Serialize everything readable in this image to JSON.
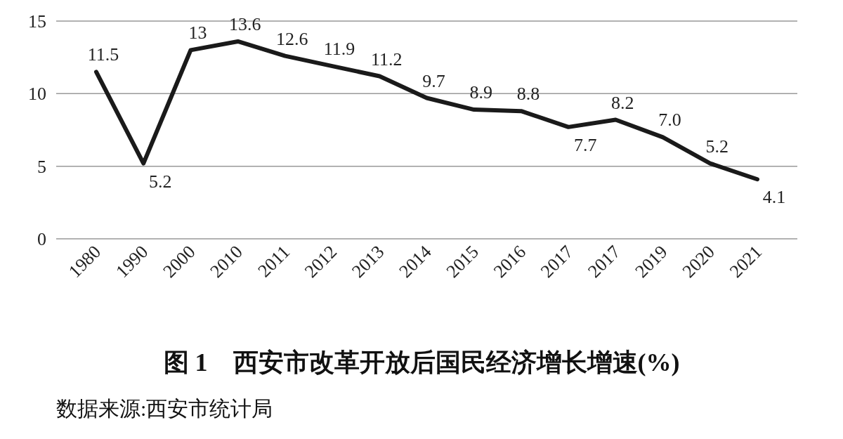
{
  "chart_data": {
    "type": "line",
    "title": "图 1　西安市改革开放后国民经济增长增速(%)",
    "categories": [
      "1980",
      "1990",
      "2000",
      "2010",
      "2011",
      "2012",
      "2013",
      "2014",
      "2015",
      "2016",
      "2017",
      "2017",
      "2019",
      "2020",
      "2021"
    ],
    "values": [
      11.5,
      5.2,
      13,
      13.6,
      12.6,
      11.9,
      11.2,
      9.7,
      8.9,
      8.8,
      7.7,
      8.2,
      7.0,
      5.2,
      4.1
    ],
    "value_labels": [
      "11.5",
      "5.2",
      "13",
      "13.6",
      "12.6",
      "11.9",
      "11.2",
      "9.7",
      "8.9",
      "8.8",
      "7.7",
      "8.2",
      "7.0",
      "5.2",
      "4.1"
    ],
    "color": "#1a1a1a",
    "line_style": "solid",
    "ylim": [
      0,
      15
    ],
    "yticks": [
      0,
      5,
      10,
      15
    ],
    "grid": "y",
    "annotations": [
      "数据来源:西安市统计局"
    ]
  }
}
